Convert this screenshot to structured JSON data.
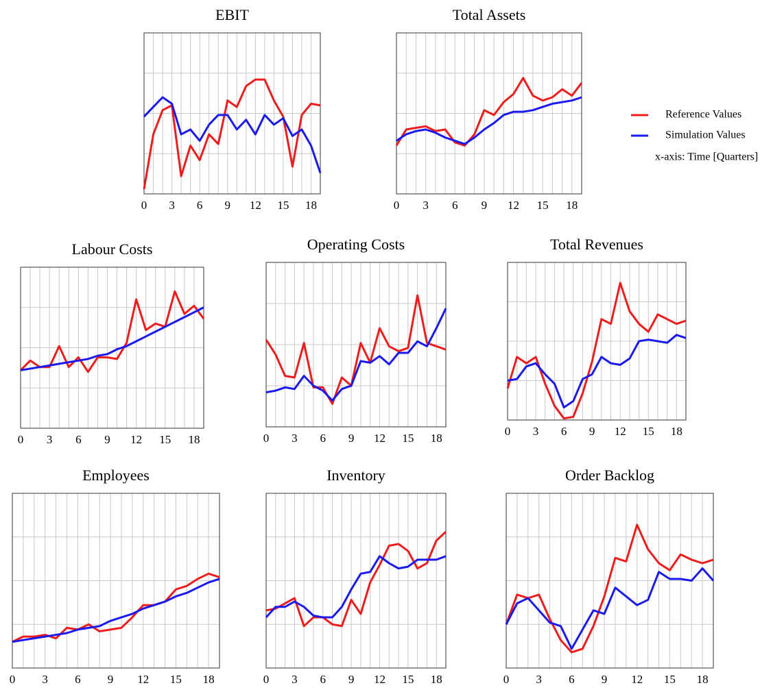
{
  "note": "x-axis: Time [Quarters]",
  "chart_data": [
    {
      "type": "line",
      "title": "EBIT",
      "x": [
        0,
        1,
        2,
        3,
        4,
        5,
        6,
        7,
        8,
        9,
        10,
        11,
        12,
        13,
        14,
        15,
        16,
        17,
        18,
        19
      ],
      "xlim": [
        0,
        19
      ],
      "xticks": [
        0,
        3,
        6,
        9,
        12,
        15,
        18
      ],
      "ylim": [
        0,
        100
      ],
      "series": [
        {
          "name": "Reference Values",
          "color": "#ee1c1c",
          "values": [
            3,
            37,
            52,
            55,
            11,
            30,
            21,
            37,
            31,
            58,
            54,
            67,
            71,
            71,
            58,
            48,
            17,
            49,
            56,
            55
          ]
        },
        {
          "name": "Simulation Values",
          "color": "#1a1aee",
          "values": [
            48,
            54,
            60,
            56,
            37,
            40,
            33,
            43,
            49,
            49,
            40,
            46,
            37,
            49,
            43,
            47,
            36,
            40,
            30,
            13
          ]
        }
      ]
    },
    {
      "type": "line",
      "title": "Total Assets",
      "x": [
        0,
        1,
        2,
        3,
        4,
        5,
        6,
        7,
        8,
        9,
        10,
        11,
        12,
        13,
        14,
        15,
        16,
        17,
        18,
        19
      ],
      "xlim": [
        0,
        19
      ],
      "xticks": [
        0,
        3,
        6,
        9,
        12,
        15,
        18
      ],
      "ylim": [
        0,
        100
      ],
      "series": [
        {
          "name": "Reference Values",
          "color": "#ee1c1c",
          "values": [
            30,
            40,
            41,
            42,
            39,
            40,
            32,
            30,
            37,
            52,
            49,
            57,
            62,
            72,
            61,
            58,
            60,
            65,
            61,
            69
          ]
        },
        {
          "name": "Simulation Values",
          "color": "#1a1aee",
          "values": [
            33,
            37,
            39,
            40,
            38,
            35,
            33,
            31,
            35,
            40,
            44,
            49,
            51,
            51,
            52,
            54,
            56,
            57,
            58,
            60
          ]
        }
      ]
    },
    {
      "type": "line",
      "title": "Labour Costs",
      "x": [
        0,
        1,
        2,
        3,
        4,
        5,
        6,
        7,
        8,
        9,
        10,
        11,
        12,
        13,
        14,
        15,
        16,
        17,
        18,
        19
      ],
      "xlim": [
        0,
        19
      ],
      "xticks": [
        0,
        3,
        6,
        9,
        12,
        15,
        18
      ],
      "ylim": [
        0,
        100
      ],
      "series": [
        {
          "name": "Reference Values",
          "color": "#ee1c1c",
          "values": [
            36,
            42,
            38,
            38,
            51,
            38,
            44,
            35,
            44,
            44,
            43,
            53,
            80,
            61,
            65,
            63,
            85,
            71,
            76,
            68
          ]
        },
        {
          "name": "Simulation Values",
          "color": "#1a1aee",
          "values": [
            36,
            37,
            38,
            39,
            40,
            41,
            42,
            43,
            45,
            46,
            49,
            51,
            54,
            57,
            60,
            63,
            66,
            69,
            72,
            75
          ]
        }
      ]
    },
    {
      "type": "line",
      "title": "Operating Costs",
      "x": [
        0,
        1,
        2,
        3,
        4,
        5,
        6,
        7,
        8,
        9,
        10,
        11,
        12,
        13,
        14,
        15,
        16,
        17,
        18,
        19
      ],
      "xlim": [
        0,
        19
      ],
      "xticks": [
        0,
        3,
        6,
        9,
        12,
        15,
        18
      ],
      "ylim": [
        0,
        100
      ],
      "series": [
        {
          "name": "Reference Values",
          "color": "#ee1c1c",
          "values": [
            53,
            44,
            31,
            30,
            51,
            24,
            24,
            14,
            30,
            25,
            51,
            39,
            60,
            49,
            46,
            48,
            80,
            51,
            49,
            47
          ]
        },
        {
          "name": "Simulation Values",
          "color": "#1a1aee",
          "values": [
            21,
            22,
            24,
            23,
            31,
            25,
            22,
            16,
            23,
            25,
            40,
            39,
            43,
            38,
            45,
            45,
            52,
            49,
            60,
            72
          ]
        }
      ]
    },
    {
      "type": "line",
      "title": "Total Revenues",
      "x": [
        0,
        1,
        2,
        3,
        4,
        5,
        6,
        7,
        8,
        9,
        10,
        11,
        12,
        13,
        14,
        15,
        16,
        17,
        18,
        19
      ],
      "xlim": [
        0,
        19
      ],
      "xticks": [
        0,
        3,
        6,
        9,
        12,
        15,
        18
      ],
      "ylim": [
        0,
        100
      ],
      "series": [
        {
          "name": "Reference Values",
          "color": "#ee1c1c",
          "values": [
            20,
            40,
            36,
            40,
            23,
            9,
            1,
            2,
            17,
            37,
            64,
            61,
            87,
            69,
            61,
            56,
            67,
            64,
            61,
            63
          ]
        },
        {
          "name": "Simulation Values",
          "color": "#1a1aee",
          "values": [
            25,
            26,
            34,
            36,
            29,
            23,
            8,
            12,
            26,
            29,
            40,
            36,
            35,
            39,
            50,
            51,
            50,
            49,
            54,
            52
          ]
        }
      ]
    },
    {
      "type": "line",
      "title": "Employees",
      "x": [
        0,
        1,
        2,
        3,
        4,
        5,
        6,
        7,
        8,
        9,
        10,
        11,
        12,
        13,
        14,
        15,
        16,
        17,
        18,
        19
      ],
      "xlim": [
        0,
        19
      ],
      "xticks": [
        0,
        3,
        6,
        9,
        12,
        15,
        18
      ],
      "ylim": [
        0,
        100
      ],
      "series": [
        {
          "name": "Reference Values",
          "color": "#ee1c1c",
          "values": [
            15,
            18,
            18,
            19,
            17,
            23,
            22,
            25,
            21,
            22,
            23,
            29,
            36,
            36,
            38,
            45,
            47,
            51,
            54,
            52
          ]
        },
        {
          "name": "Simulation Values",
          "color": "#1a1aee",
          "values": [
            15,
            16,
            17,
            18,
            19,
            20,
            22,
            23,
            24,
            27,
            29,
            31,
            34,
            36,
            38,
            41,
            43,
            46,
            49,
            51
          ]
        }
      ]
    },
    {
      "type": "line",
      "title": "Inventory",
      "x": [
        0,
        1,
        2,
        3,
        4,
        5,
        6,
        7,
        8,
        9,
        10,
        11,
        12,
        13,
        14,
        15,
        16,
        17,
        18,
        19
      ],
      "xlim": [
        0,
        19
      ],
      "xticks": [
        0,
        3,
        6,
        9,
        12,
        15,
        18
      ],
      "ylim": [
        0,
        100
      ],
      "series": [
        {
          "name": "Reference Values",
          "color": "#ee1c1c",
          "values": [
            33,
            34,
            37,
            40,
            24,
            29,
            29,
            25,
            24,
            39,
            31,
            49,
            59,
            70,
            71,
            67,
            57,
            60,
            73,
            78
          ]
        },
        {
          "name": "Simulation Values",
          "color": "#1a1aee",
          "values": [
            29,
            35,
            35,
            38,
            35,
            30,
            29,
            29,
            35,
            45,
            54,
            55,
            64,
            60,
            57,
            58,
            62,
            62,
            62,
            64
          ]
        }
      ]
    },
    {
      "type": "line",
      "title": "Order Backlog",
      "x": [
        0,
        1,
        2,
        3,
        4,
        5,
        6,
        7,
        8,
        9,
        10,
        11,
        12,
        13,
        14,
        15,
        16,
        17,
        18,
        19
      ],
      "xlim": [
        0,
        19
      ],
      "xticks": [
        0,
        3,
        6,
        9,
        12,
        15,
        18
      ],
      "ylim": [
        0,
        100
      ],
      "series": [
        {
          "name": "Reference Values",
          "color": "#ee1c1c",
          "values": [
            25,
            42,
            40,
            42,
            28,
            16,
            9,
            11,
            24,
            41,
            63,
            61,
            82,
            68,
            60,
            56,
            65,
            62,
            60,
            62
          ]
        },
        {
          "name": "Simulation Values",
          "color": "#1a1aee",
          "values": [
            25,
            37,
            40,
            33,
            26,
            24,
            11,
            22,
            33,
            31,
            46,
            41,
            36,
            39,
            55,
            51,
            51,
            50,
            57,
            50
          ]
        }
      ]
    }
  ]
}
